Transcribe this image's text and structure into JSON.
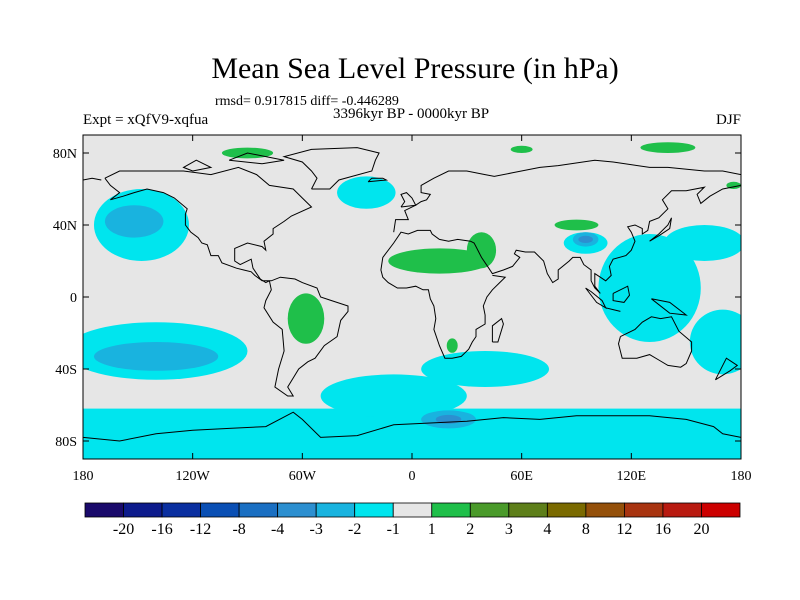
{
  "chart_data": {
    "type": "heatmap",
    "title": "Mean Sea Level Pressure (in hPa)",
    "stats": "rmsd= 0.917815 diff= -0.446289",
    "period": "3396kyr BP - 0000kyr BP",
    "experiment": "Expt = xQfV9-xqfua",
    "season": "DJF",
    "x_ticks": [
      "180",
      "120W",
      "60W",
      "0",
      "60E",
      "120E",
      "180"
    ],
    "y_ticks": [
      "80N",
      "40N",
      "0",
      "40S",
      "80S"
    ],
    "xlim": [
      -180,
      180
    ],
    "ylim": [
      -90,
      90
    ],
    "colorbar_labels": [
      "-20",
      "-16",
      "-12",
      "-8",
      "-4",
      "-3",
      "-2",
      "-1",
      "1",
      "2",
      "3",
      "4",
      "8",
      "12",
      "16",
      "20"
    ],
    "colorbar_colors": [
      "#1a0a6b",
      "#0d1b8c",
      "#0a2fa0",
      "#0a4fb4",
      "#1a6fc2",
      "#2c8fd0",
      "#19b3df",
      "#00e5ee",
      "#e6e6e6",
      "#1fbf4a",
      "#4a9a2a",
      "#5e7f1a",
      "#7a6a00",
      "#94500a",
      "#a83410",
      "#b81a10",
      "#cc0000"
    ],
    "regions": [
      {
        "cls": -1,
        "shape": "ellipse",
        "lon": -148,
        "lat": 40,
        "rlon": 26,
        "rlat": 20
      },
      {
        "cls": -2,
        "shape": "ellipse",
        "lon": -152,
        "lat": 42,
        "rlon": 16,
        "rlat": 9
      },
      {
        "cls": -1,
        "shape": "ellipse",
        "lon": -140,
        "lat": -30,
        "rlon": 50,
        "rlat": 16
      },
      {
        "cls": -2,
        "shape": "ellipse",
        "lon": -140,
        "lat": -33,
        "rlon": 34,
        "rlat": 8
      },
      {
        "cls": -1,
        "shape": "ellipse",
        "lon": -25,
        "lat": 58,
        "rlon": 16,
        "rlat": 9
      },
      {
        "cls": -1,
        "shape": "ellipse",
        "lon": 130,
        "lat": 5,
        "rlon": 28,
        "rlat": 30
      },
      {
        "cls": -1,
        "shape": "ellipse",
        "lon": 170,
        "lat": -25,
        "rlon": 18,
        "rlat": 18
      },
      {
        "cls": -1,
        "shape": "ellipse",
        "lon": 160,
        "lat": 30,
        "rlon": 22,
        "rlat": 10
      },
      {
        "cls": -1,
        "shape": "ellipse",
        "lon": 40,
        "lat": -40,
        "rlon": 35,
        "rlat": 10
      },
      {
        "cls": -1,
        "shape": "ellipse",
        "lon": -10,
        "lat": -55,
        "rlon": 40,
        "rlat": 12
      },
      {
        "cls": -1,
        "shape": "ellipse",
        "lon": 95,
        "lat": 30,
        "rlon": 12,
        "rlat": 6
      },
      {
        "cls": -2,
        "shape": "ellipse",
        "lon": 95,
        "lat": 32,
        "rlon": 7,
        "rlat": 4
      },
      {
        "cls": -3,
        "shape": "ellipse",
        "lon": 95,
        "lat": 32,
        "rlon": 4,
        "rlat": 2
      },
      {
        "cls": -2,
        "shape": "ellipse",
        "lon": 20,
        "lat": -68,
        "rlon": 15,
        "rlat": 5
      },
      {
        "cls": -3,
        "shape": "ellipse",
        "lon": 20,
        "lat": -68,
        "rlon": 7,
        "rlat": 2.5
      },
      {
        "cls": 1,
        "shape": "ellipse",
        "lon": 15,
        "lat": 20,
        "rlon": 28,
        "rlat": 7
      },
      {
        "cls": 1,
        "shape": "ellipse",
        "lon": 38,
        "lat": 26,
        "rlon": 8,
        "rlat": 10
      },
      {
        "cls": 1,
        "shape": "ellipse",
        "lon": -58,
        "lat": -12,
        "rlon": 10,
        "rlat": 14
      },
      {
        "cls": 1,
        "shape": "ellipse",
        "lon": 90,
        "lat": 40,
        "rlon": 12,
        "rlat": 3
      },
      {
        "cls": 1,
        "shape": "ellipse",
        "lon": 22,
        "lat": -27,
        "rlon": 3,
        "rlat": 4
      },
      {
        "cls": 1,
        "shape": "ellipse",
        "lon": -90,
        "lat": 80,
        "rlon": 14,
        "rlat": 3
      },
      {
        "cls": 1,
        "shape": "ellipse",
        "lon": 60,
        "lat": 82,
        "rlon": 6,
        "rlat": 2
      },
      {
        "cls": 1,
        "shape": "ellipse",
        "lon": 140,
        "lat": 83,
        "rlon": 15,
        "rlat": 3
      },
      {
        "cls": 1,
        "shape": "ellipse",
        "lon": 176,
        "lat": 62,
        "rlon": 4,
        "rlat": 2
      }
    ],
    "band_south": {
      "cls": -1,
      "lat_top": -62,
      "lat_bottom": -90
    }
  }
}
